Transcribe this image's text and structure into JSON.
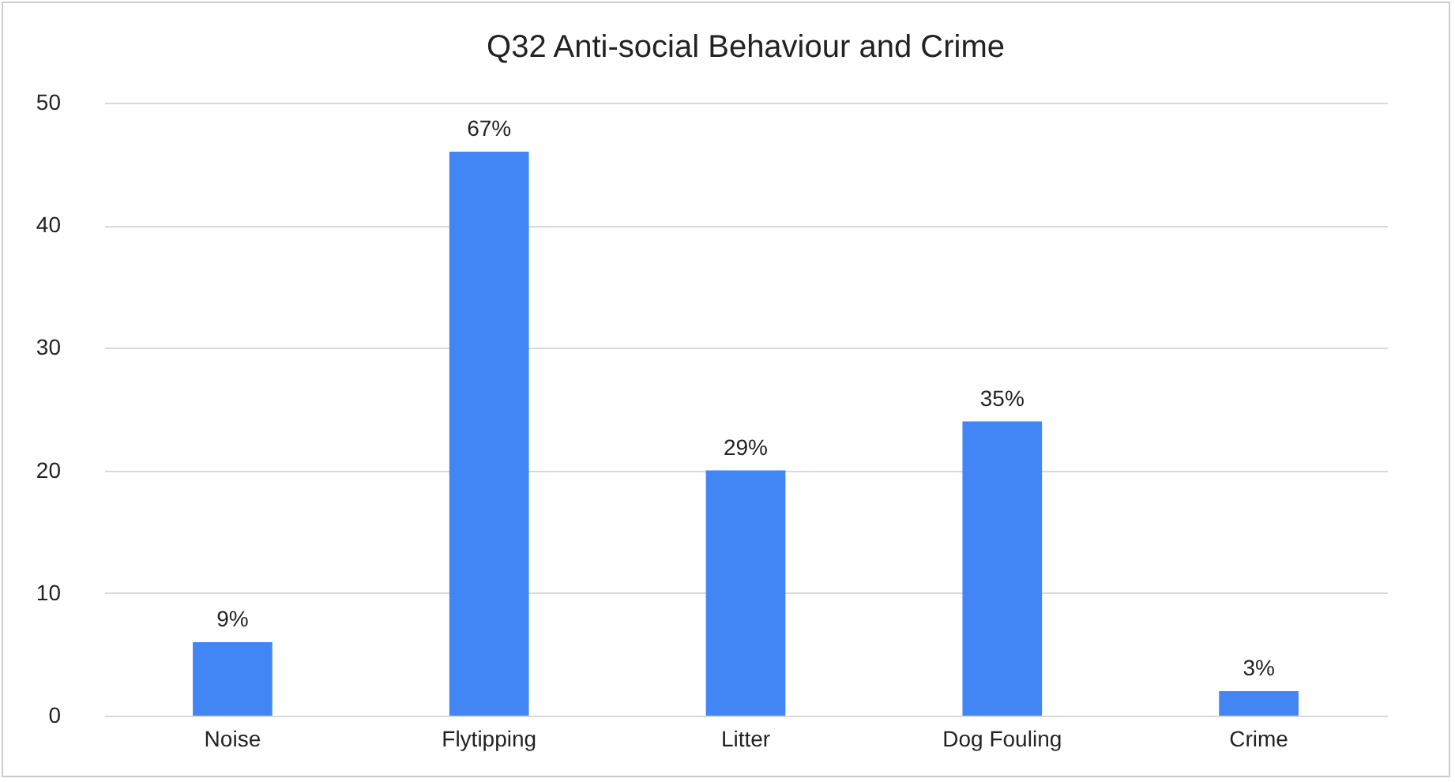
{
  "chart_data": {
    "type": "bar",
    "title": "Q32 Anti-social Behaviour and Crime",
    "categories": [
      "Noise",
      "Flytipping",
      "Litter",
      "Dog Fouling",
      "Crime"
    ],
    "values": [
      6,
      46,
      20,
      24,
      2
    ],
    "annotations": [
      {
        "text": "9%",
        "x": "Noise",
        "y": 6
      },
      {
        "text": "67%",
        "x": "Flytipping",
        "y": 46
      },
      {
        "text": "29%",
        "x": "Litter",
        "y": 20
      },
      {
        "text": "35%",
        "x": "Dog Fouling",
        "y": 24
      },
      {
        "text": "3%",
        "x": "Crime",
        "y": 2
      }
    ],
    "color": "#4285f4",
    "ylim": [
      0,
      50
    ],
    "yticks": [
      0,
      10,
      20,
      30,
      40,
      50
    ],
    "grid": "y"
  }
}
